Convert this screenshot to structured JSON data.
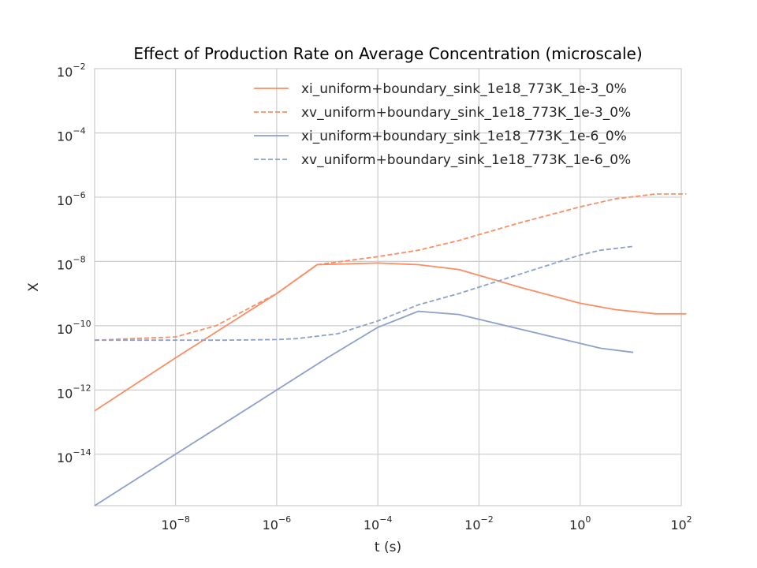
{
  "chart_data": {
    "type": "line",
    "title": "Effect of Production Rate on Average Concentration (microscale)",
    "xlabel": "t (s)",
    "ylabel": "X",
    "xscale": "log",
    "yscale": "log",
    "xlim_exp": [
      -9.6,
      2
    ],
    "ylim_exp": [
      -15.6,
      -2
    ],
    "x_ticks": [
      {
        "base": "10",
        "exp": "−8",
        "value_exp": -8
      },
      {
        "base": "10",
        "exp": "−6",
        "value_exp": -6
      },
      {
        "base": "10",
        "exp": "−4",
        "value_exp": -4
      },
      {
        "base": "10",
        "exp": "−2",
        "value_exp": -2
      },
      {
        "base": "10",
        "exp": "0",
        "value_exp": 0
      },
      {
        "base": "10",
        "exp": "2",
        "value_exp": 2
      }
    ],
    "y_ticks": [
      {
        "base": "10",
        "exp": "−14",
        "value_exp": -14
      },
      {
        "base": "10",
        "exp": "−12",
        "value_exp": -12
      },
      {
        "base": "10",
        "exp": "−10",
        "value_exp": -10
      },
      {
        "base": "10",
        "exp": "−8",
        "value_exp": -8
      },
      {
        "base": "10",
        "exp": "−6",
        "value_exp": -6
      },
      {
        "base": "10",
        "exp": "−4",
        "value_exp": -4
      },
      {
        "base": "10",
        "exp": "−2",
        "value_exp": -2
      }
    ],
    "grid": true,
    "legend_position": "top-right",
    "series": [
      {
        "name": "xi_uniform+boundary_sink_1e18_773K_1e-3_0%",
        "color": "#fc8d62",
        "dash": "solid",
        "points_log10": [
          [
            -9.6,
            -12.65
          ],
          [
            -8,
            -11.0
          ],
          [
            -6,
            -9.0
          ],
          [
            -5.2,
            -8.1
          ],
          [
            -4,
            -8.05
          ],
          [
            -3.2,
            -8.1
          ],
          [
            -2.4,
            -8.25
          ],
          [
            -1.2,
            -8.8
          ],
          [
            0,
            -9.3
          ],
          [
            0.7,
            -9.5
          ],
          [
            1.5,
            -9.63
          ],
          [
            2.1,
            -9.63
          ]
        ]
      },
      {
        "name": "xv_uniform+boundary_sink_1e18_773K_1e-3_0%",
        "color": "#fc8d62",
        "dash": "dashed",
        "points_log10": [
          [
            -9.6,
            -10.45
          ],
          [
            -8,
            -10.35
          ],
          [
            -7.2,
            -10.0
          ],
          [
            -6,
            -9.0
          ],
          [
            -5.2,
            -8.1
          ],
          [
            -4,
            -7.85
          ],
          [
            -3.2,
            -7.65
          ],
          [
            -2.4,
            -7.35
          ],
          [
            -1.2,
            -6.8
          ],
          [
            0,
            -6.3
          ],
          [
            0.7,
            -6.05
          ],
          [
            1.5,
            -5.9
          ],
          [
            2.1,
            -5.9
          ]
        ]
      },
      {
        "name": "xi_uniform+boundary_sink_1e18_773K_1e-6_0%",
        "color": "#8da0cb",
        "dash": "solid",
        "points_log10": [
          [
            -9.6,
            -15.6
          ],
          [
            -8,
            -14.0
          ],
          [
            -6,
            -12.0
          ],
          [
            -5,
            -11.0
          ],
          [
            -4,
            -10.05
          ],
          [
            -3.2,
            -9.55
          ],
          [
            -2.4,
            -9.65
          ],
          [
            -1.2,
            -10.1
          ],
          [
            0,
            -10.55
          ],
          [
            0.4,
            -10.7
          ],
          [
            1.05,
            -10.83
          ]
        ]
      },
      {
        "name": "xv_uniform+boundary_sink_1e18_773K_1e-6_0%",
        "color": "#8da0cb",
        "dash": "dashed",
        "points_log10": [
          [
            -9.6,
            -10.45
          ],
          [
            -8,
            -10.45
          ],
          [
            -7,
            -10.45
          ],
          [
            -6,
            -10.43
          ],
          [
            -5.6,
            -10.4
          ],
          [
            -4.8,
            -10.25
          ],
          [
            -4,
            -9.85
          ],
          [
            -3.2,
            -9.35
          ],
          [
            -2.4,
            -9.0
          ],
          [
            -1.2,
            -8.4
          ],
          [
            0,
            -7.8
          ],
          [
            0.4,
            -7.65
          ],
          [
            1.05,
            -7.53
          ]
        ]
      }
    ]
  }
}
